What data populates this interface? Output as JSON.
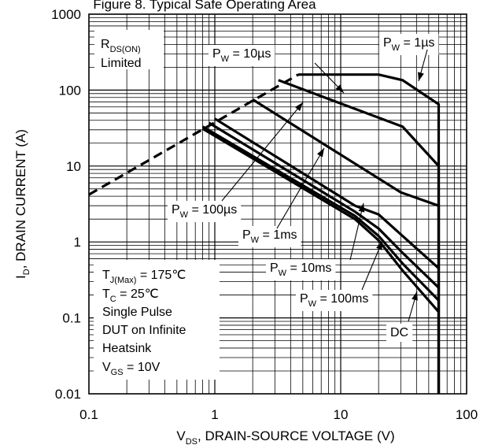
{
  "chart_data": {
    "type": "line",
    "title": "Figure 8. Typical Safe Operating Area",
    "x_scale": "log",
    "y_scale": "log",
    "xlim": [
      0.1,
      100
    ],
    "ylim": [
      0.01,
      1000
    ],
    "x_ticks": [
      "0.1",
      "1",
      "10",
      "100"
    ],
    "y_ticks": [
      "1000",
      "100",
      "10",
      "1",
      "0.1",
      "0.01"
    ],
    "xlabel": {
      "main": "V",
      "sub": "DS",
      "rest": ", DRAIN-SOURCE VOLTAGE (V)"
    },
    "ylabel": {
      "main": "I",
      "sub": "D",
      "rest": ", DRAIN CURRENT (A)"
    },
    "grid": true,
    "series": [
      {
        "name": "R_DS(ON) Limited",
        "style": "dashed",
        "x": [
          0.1,
          4.6
        ],
        "y": [
          4.2,
          160
        ]
      },
      {
        "name": "PW = 1µs",
        "style": "solid",
        "x": [
          4.6,
          20,
          31,
          60,
          60
        ],
        "y": [
          160,
          160,
          135,
          65,
          0.01
        ]
      },
      {
        "name": "PW = 10µs",
        "style": "solid",
        "x": [
          3.2,
          31,
          60,
          60
        ],
        "y": [
          135,
          33,
          10,
          0.01
        ]
      },
      {
        "name": "PW = 100µs",
        "style": "solid",
        "x": [
          2.0,
          30,
          60,
          60
        ],
        "y": [
          75,
          4.5,
          3,
          0.01
        ]
      },
      {
        "name": "PW = 1ms",
        "style": "solid",
        "x": [
          1.0,
          13,
          20,
          31,
          60
        ],
        "y": [
          42,
          3,
          2.3,
          1.2,
          0.45
        ]
      },
      {
        "name": "PW = 10ms",
        "style": "solid",
        "x": [
          0.9,
          13,
          20,
          31,
          60
        ],
        "y": [
          37,
          2.5,
          1.5,
          0.72,
          0.25
        ]
      },
      {
        "name": "PW = 100ms",
        "style": "solid",
        "x": [
          0.8,
          13,
          20,
          31,
          60
        ],
        "y": [
          33,
          2.2,
          1.2,
          0.52,
          0.17
        ]
      },
      {
        "name": "DC",
        "style": "solid",
        "x": [
          0.8,
          13,
          20,
          31,
          60
        ],
        "y": [
          31,
          2.0,
          1.05,
          0.42,
          0.12
        ]
      }
    ],
    "annotations": [
      {
        "id": "rds",
        "lines": [
          {
            "main": "R",
            "sub": "DS(ON)",
            "rest": ""
          },
          {
            "main": "Limited",
            "sub": "",
            "rest": ""
          }
        ]
      },
      {
        "id": "pw1us",
        "main": "P",
        "sub": "W",
        "rest": " = 1µs"
      },
      {
        "id": "pw10us",
        "main": "P",
        "sub": "W",
        "rest": " = 10µs"
      },
      {
        "id": "pw100us",
        "main": "P",
        "sub": "W",
        "rest": " = 100µs"
      },
      {
        "id": "pw1ms",
        "main": "P",
        "sub": "W",
        "rest": " = 1ms"
      },
      {
        "id": "pw10ms",
        "main": "P",
        "sub": "W",
        "rest": " = 10ms"
      },
      {
        "id": "pw100ms",
        "main": "P",
        "sub": "W",
        "rest": " = 100ms"
      },
      {
        "id": "dc",
        "main": "DC",
        "sub": "",
        "rest": ""
      }
    ],
    "conditions": [
      {
        "main": "T",
        "sub": "J(Max)",
        "rest": " = 175℃"
      },
      {
        "main": "T",
        "sub": "C",
        "rest": " = 25℃"
      },
      {
        "main": "Single Pulse",
        "sub": "",
        "rest": ""
      },
      {
        "main": "DUT on Infinite",
        "sub": "",
        "rest": ""
      },
      {
        "main": "Heatsink",
        "sub": "",
        "rest": ""
      },
      {
        "main": "V",
        "sub": "GS",
        "rest": " = 10V"
      }
    ]
  }
}
